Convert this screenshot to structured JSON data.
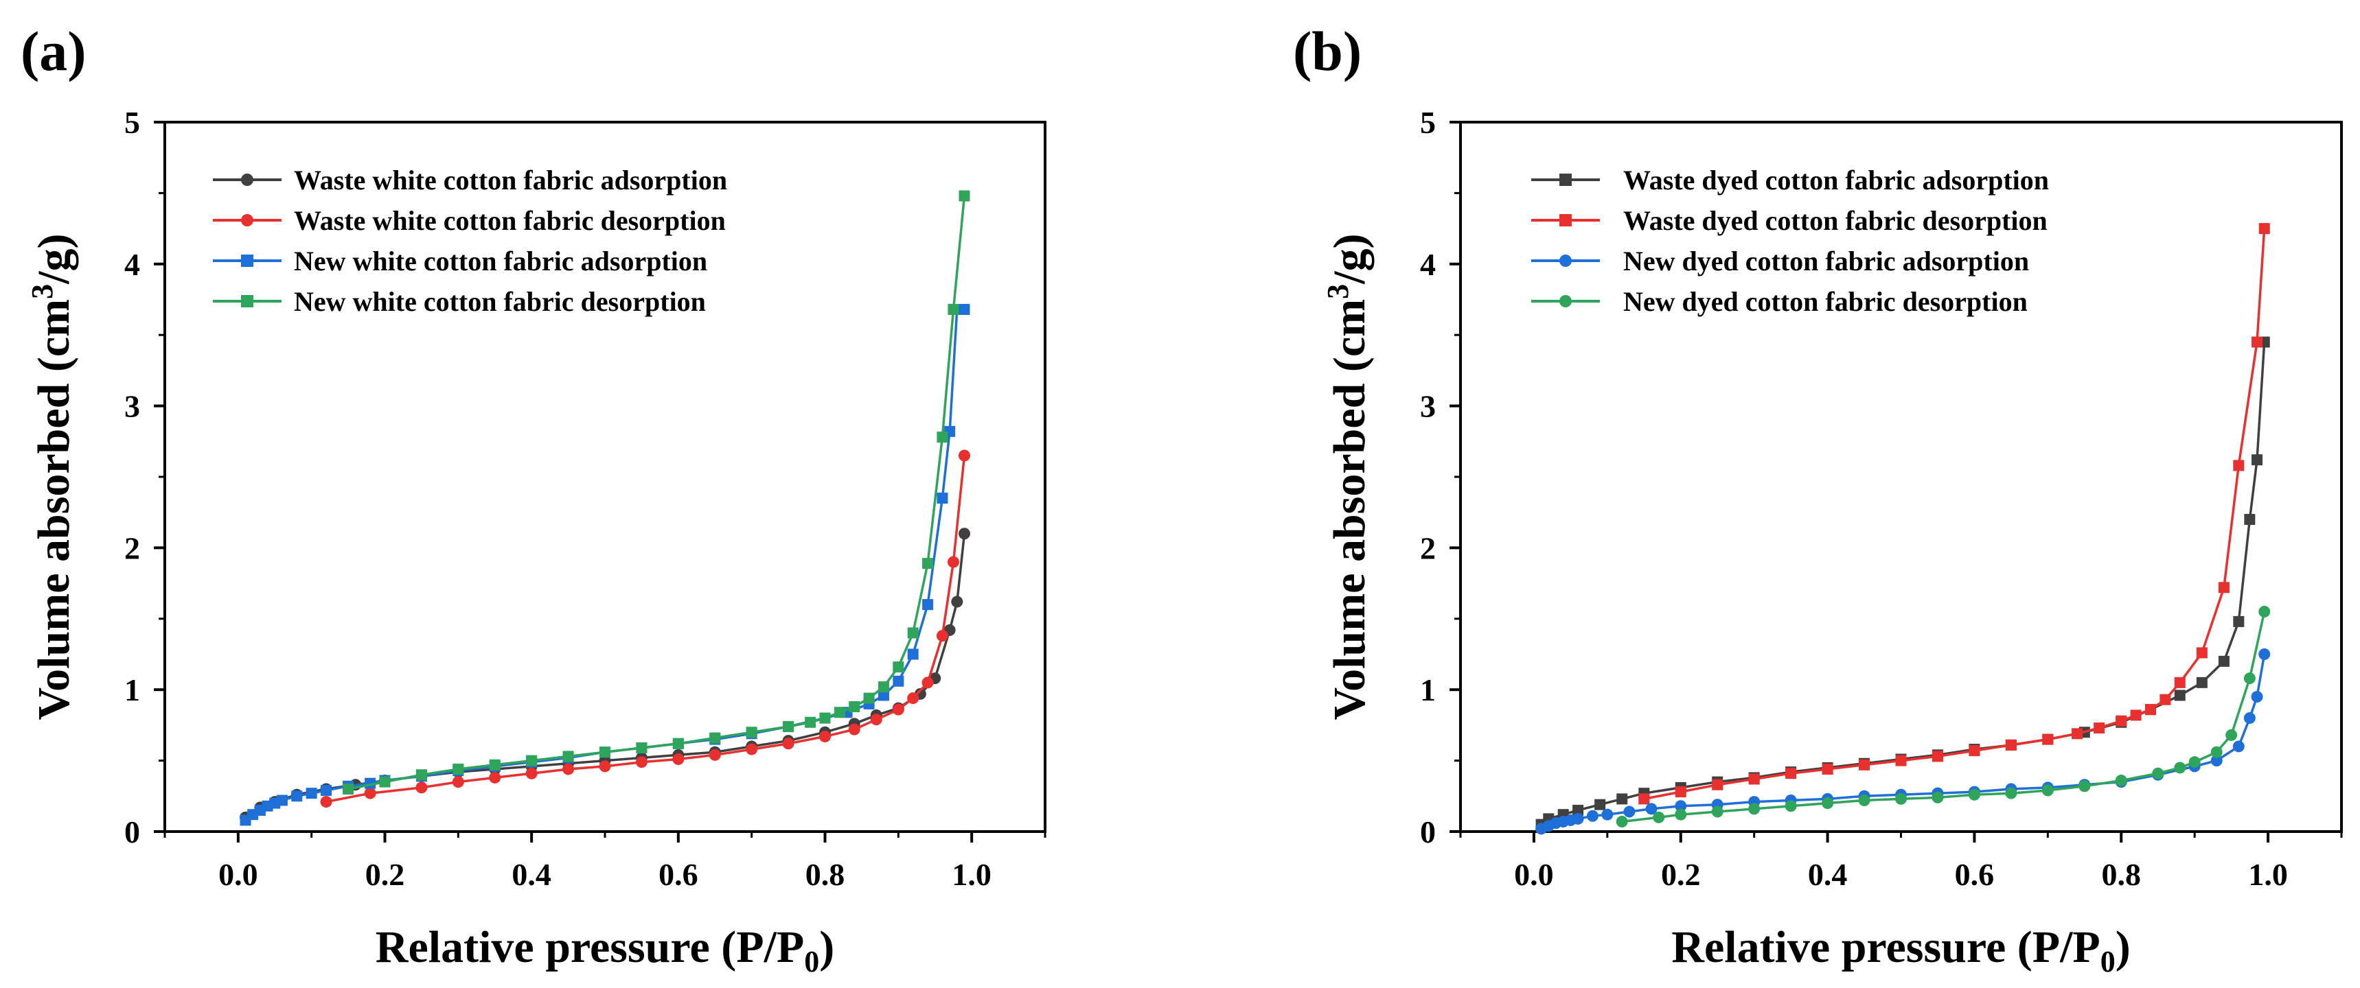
{
  "figure": {
    "panels": [
      "(a)",
      "(b)"
    ]
  },
  "chart_data": [
    {
      "type": "line",
      "panel_label": "(a)",
      "xlabel": "Relative pressure (P/P",
      "xlabel_sub": "0",
      "xlabel_tail": ")",
      "ylabel": "Volume absorbed (cm",
      "ylabel_sup": "3",
      "ylabel_tail": "/g)",
      "xlim": [
        -0.1,
        1.1
      ],
      "ylim": [
        0,
        5
      ],
      "xticks": [
        0.0,
        0.2,
        0.4,
        0.6,
        0.8,
        1.0
      ],
      "xtick_labels": [
        "0.0",
        "0.2",
        "0.4",
        "0.6",
        "0.8",
        "1.0"
      ],
      "yticks": [
        0,
        1,
        2,
        3,
        4,
        5
      ],
      "ytick_labels": [
        "0",
        "1",
        "2",
        "3",
        "4",
        "5"
      ],
      "legend_position": "top-left",
      "series": [
        {
          "name": "Waste white cotton fabric adsorption",
          "color": "#404040",
          "marker": "circle",
          "x": [
            0.01,
            0.03,
            0.05,
            0.08,
            0.12,
            0.16,
            0.2,
            0.25,
            0.3,
            0.35,
            0.4,
            0.45,
            0.5,
            0.55,
            0.6,
            0.65,
            0.7,
            0.75,
            0.8,
            0.84,
            0.87,
            0.9,
            0.93,
            0.95,
            0.97,
            0.98,
            0.99
          ],
          "y": [
            0.1,
            0.17,
            0.21,
            0.26,
            0.3,
            0.33,
            0.36,
            0.39,
            0.42,
            0.44,
            0.46,
            0.48,
            0.5,
            0.52,
            0.54,
            0.56,
            0.6,
            0.64,
            0.7,
            0.76,
            0.82,
            0.87,
            0.97,
            1.08,
            1.42,
            1.62,
            2.1
          ]
        },
        {
          "name": "Waste white cotton fabric desorption",
          "color": "#e8302f",
          "marker": "circle",
          "x": [
            0.99,
            0.975,
            0.96,
            0.94,
            0.92,
            0.9,
            0.87,
            0.84,
            0.8,
            0.75,
            0.7,
            0.65,
            0.6,
            0.55,
            0.5,
            0.45,
            0.4,
            0.35,
            0.3,
            0.25,
            0.18,
            0.12
          ],
          "y": [
            2.65,
            1.9,
            1.38,
            1.05,
            0.94,
            0.86,
            0.79,
            0.72,
            0.67,
            0.62,
            0.58,
            0.54,
            0.51,
            0.49,
            0.46,
            0.44,
            0.41,
            0.38,
            0.35,
            0.31,
            0.27,
            0.21
          ]
        },
        {
          "name": "New white cotton fabric adsorption",
          "color": "#1f6fd8",
          "marker": "square",
          "x": [
            0.01,
            0.02,
            0.03,
            0.04,
            0.05,
            0.06,
            0.08,
            0.1,
            0.12,
            0.15,
            0.18,
            0.2,
            0.25,
            0.3,
            0.35,
            0.4,
            0.45,
            0.5,
            0.55,
            0.6,
            0.65,
            0.7,
            0.75,
            0.8,
            0.83,
            0.86,
            0.88,
            0.9,
            0.92,
            0.94,
            0.96,
            0.97,
            0.98,
            0.99
          ],
          "y": [
            0.08,
            0.12,
            0.15,
            0.18,
            0.2,
            0.22,
            0.25,
            0.27,
            0.29,
            0.32,
            0.34,
            0.36,
            0.39,
            0.43,
            0.46,
            0.49,
            0.52,
            0.56,
            0.59,
            0.62,
            0.65,
            0.69,
            0.74,
            0.8,
            0.84,
            0.9,
            0.96,
            1.06,
            1.25,
            1.6,
            2.35,
            2.82,
            3.68,
            3.68
          ]
        },
        {
          "name": "New white cotton fabric desorption",
          "color": "#2fa55b",
          "marker": "square",
          "x": [
            0.99,
            0.975,
            0.96,
            0.94,
            0.92,
            0.9,
            0.88,
            0.86,
            0.84,
            0.82,
            0.8,
            0.78,
            0.75,
            0.7,
            0.65,
            0.6,
            0.55,
            0.5,
            0.45,
            0.4,
            0.35,
            0.3,
            0.25,
            0.2,
            0.15
          ],
          "y": [
            4.48,
            3.68,
            2.78,
            1.89,
            1.4,
            1.16,
            1.02,
            0.94,
            0.88,
            0.84,
            0.8,
            0.77,
            0.74,
            0.7,
            0.66,
            0.62,
            0.59,
            0.56,
            0.53,
            0.5,
            0.47,
            0.44,
            0.4,
            0.35,
            0.3
          ]
        }
      ]
    },
    {
      "type": "line",
      "panel_label": "(b)",
      "xlabel": "Relative pressure (P/P",
      "xlabel_sub": "0",
      "xlabel_tail": ")",
      "ylabel": "Volume absorbed (cm",
      "ylabel_sup": "3",
      "ylabel_tail": "/g)",
      "xlim": [
        -0.1,
        1.1
      ],
      "ylim": [
        0,
        5
      ],
      "xticks": [
        0.0,
        0.2,
        0.4,
        0.6,
        0.8,
        1.0
      ],
      "xtick_labels": [
        "0.0",
        "0.2",
        "0.4",
        "0.6",
        "0.8",
        "1.0"
      ],
      "yticks": [
        0,
        1,
        2,
        3,
        4,
        5
      ],
      "ytick_labels": [
        "0",
        "1",
        "2",
        "3",
        "4",
        "5"
      ],
      "legend_position": "top-left",
      "series": [
        {
          "name": "Waste dyed cotton fabric adsorption",
          "color": "#404040",
          "marker": "square",
          "x": [
            0.01,
            0.02,
            0.04,
            0.06,
            0.09,
            0.12,
            0.15,
            0.2,
            0.25,
            0.3,
            0.35,
            0.4,
            0.45,
            0.5,
            0.55,
            0.6,
            0.65,
            0.7,
            0.75,
            0.8,
            0.84,
            0.88,
            0.91,
            0.94,
            0.96,
            0.975,
            0.985,
            0.995
          ],
          "y": [
            0.05,
            0.09,
            0.12,
            0.15,
            0.19,
            0.23,
            0.27,
            0.31,
            0.35,
            0.38,
            0.42,
            0.45,
            0.48,
            0.51,
            0.54,
            0.58,
            0.61,
            0.65,
            0.7,
            0.77,
            0.86,
            0.96,
            1.05,
            1.2,
            1.48,
            2.2,
            2.62,
            3.45
          ]
        },
        {
          "name": "Waste dyed cotton fabric desorption",
          "color": "#e8302f",
          "marker": "square",
          "x": [
            0.995,
            0.985,
            0.96,
            0.94,
            0.91,
            0.88,
            0.86,
            0.84,
            0.82,
            0.8,
            0.77,
            0.74,
            0.7,
            0.65,
            0.6,
            0.55,
            0.5,
            0.45,
            0.4,
            0.35,
            0.3,
            0.25,
            0.2,
            0.15
          ],
          "y": [
            4.25,
            3.45,
            2.58,
            1.72,
            1.26,
            1.05,
            0.93,
            0.86,
            0.82,
            0.78,
            0.73,
            0.69,
            0.65,
            0.61,
            0.57,
            0.53,
            0.5,
            0.47,
            0.44,
            0.41,
            0.37,
            0.33,
            0.28,
            0.23
          ]
        },
        {
          "name": "New dyed cotton fabric adsorption",
          "color": "#1f6fd8",
          "marker": "circle",
          "x": [
            0.01,
            0.02,
            0.03,
            0.04,
            0.05,
            0.06,
            0.08,
            0.1,
            0.13,
            0.16,
            0.2,
            0.25,
            0.3,
            0.35,
            0.4,
            0.45,
            0.5,
            0.55,
            0.6,
            0.65,
            0.7,
            0.75,
            0.8,
            0.85,
            0.9,
            0.93,
            0.96,
            0.975,
            0.985,
            0.995
          ],
          "y": [
            0.02,
            0.04,
            0.06,
            0.07,
            0.08,
            0.09,
            0.11,
            0.12,
            0.14,
            0.16,
            0.18,
            0.19,
            0.21,
            0.22,
            0.23,
            0.25,
            0.26,
            0.27,
            0.28,
            0.3,
            0.31,
            0.33,
            0.35,
            0.4,
            0.46,
            0.5,
            0.6,
            0.8,
            0.95,
            1.25
          ]
        },
        {
          "name": "New dyed cotton fabric desorption",
          "color": "#2fa55b",
          "marker": "circle",
          "x": [
            0.995,
            0.975,
            0.95,
            0.93,
            0.9,
            0.88,
            0.85,
            0.8,
            0.75,
            0.7,
            0.65,
            0.6,
            0.55,
            0.5,
            0.45,
            0.4,
            0.35,
            0.3,
            0.25,
            0.2,
            0.17,
            0.12
          ],
          "y": [
            1.55,
            1.08,
            0.68,
            0.56,
            0.49,
            0.45,
            0.41,
            0.36,
            0.32,
            0.29,
            0.27,
            0.26,
            0.24,
            0.23,
            0.22,
            0.2,
            0.18,
            0.16,
            0.14,
            0.12,
            0.1,
            0.07
          ]
        }
      ]
    }
  ]
}
